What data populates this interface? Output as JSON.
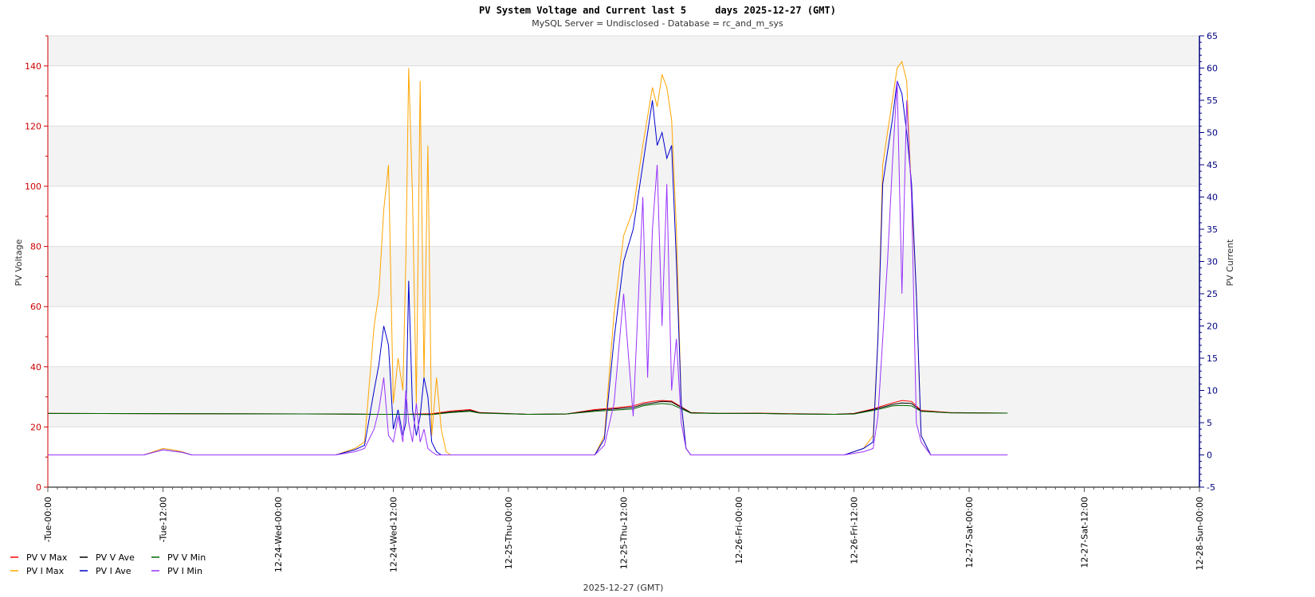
{
  "chart_data": {
    "type": "line",
    "title": "PV System Voltage and Current last 5     days 2025-12-27 (GMT)",
    "subtitle": "MySQL Server = Undisclosed - Database = rc_and_m_sys",
    "xlabel": "2025-12-27 (GMT)",
    "ylabel_left": "PV Voltage",
    "ylabel_right": "PV Current",
    "ylim_left": [
      0,
      150
    ],
    "ylim_right": [
      -5,
      65
    ],
    "left_ticks": [
      0,
      20,
      40,
      60,
      80,
      100,
      120,
      140
    ],
    "right_ticks": [
      -5,
      0,
      5,
      10,
      15,
      20,
      25,
      30,
      35,
      40,
      45,
      50,
      55,
      60,
      65
    ],
    "xlim": [
      0,
      120
    ],
    "x_ticks": [
      0,
      12,
      24,
      36,
      48,
      60,
      72,
      84,
      96,
      108,
      120
    ],
    "x_tick_labels": [
      "-Tue-00:00",
      "-Tue-12:00",
      "12-24-Wed-00:00",
      "12-24-Wed-12:00",
      "12-25-Thu-00:00",
      "12-25-Thu-12:00",
      "12-26-Fri-00:00",
      "12-26-Fri-12:00",
      "12-27-Sat-00:00",
      "12-27-Sat-12:00",
      "12-28-Sun-00:00"
    ],
    "grid": true,
    "legend_placement": "bottom-left",
    "legend": [
      "PV V Max",
      "PV V Ave",
      "PV V Min",
      "PV I Max",
      "PV I Ave",
      "PV I Min"
    ],
    "series": [
      {
        "name": "PV V Max",
        "axis": "left",
        "color": "#ff0000",
        "x": [
          0,
          30,
          34,
          37,
          40,
          42,
          44,
          45,
          50,
          54,
          57,
          59,
          61,
          62,
          63,
          64,
          65,
          67,
          70,
          74,
          78,
          82,
          84,
          86,
          87,
          88,
          89,
          90,
          91,
          94,
          100
        ],
        "y": [
          24.5,
          24.3,
          24.2,
          24.2,
          24.4,
          25.3,
          25.8,
          24.8,
          24.2,
          24.3,
          25.8,
          26.3,
          27.0,
          28.0,
          28.5,
          28.8,
          28.6,
          24.8,
          24.5,
          24.6,
          24.4,
          24.2,
          24.5,
          26.0,
          27.0,
          28.0,
          28.8,
          28.5,
          25.5,
          24.8,
          24.6
        ]
      },
      {
        "name": "PV V Ave",
        "axis": "left",
        "color": "#000000",
        "x": [
          0,
          30,
          34,
          37,
          40,
          42,
          44,
          45,
          50,
          54,
          57,
          59,
          61,
          62,
          63,
          64,
          65,
          67,
          70,
          74,
          78,
          82,
          84,
          86,
          87,
          88,
          89,
          90,
          91,
          94,
          100
        ],
        "y": [
          24.5,
          24.3,
          24.2,
          24.2,
          24.2,
          25.0,
          25.5,
          24.7,
          24.2,
          24.3,
          25.5,
          26.0,
          26.5,
          27.5,
          28.0,
          28.5,
          28.3,
          24.7,
          24.5,
          24.5,
          24.3,
          24.2,
          24.4,
          25.8,
          26.6,
          27.5,
          28.0,
          27.8,
          25.3,
          24.7,
          24.6
        ]
      },
      {
        "name": "PV V Min",
        "axis": "left",
        "color": "#006600",
        "x": [
          0,
          30,
          34,
          37,
          40,
          42,
          44,
          45,
          50,
          54,
          57,
          59,
          61,
          62,
          63,
          64,
          65,
          67,
          70,
          74,
          78,
          82,
          84,
          86,
          87,
          88,
          89,
          90,
          91,
          94,
          100
        ],
        "y": [
          24.5,
          24.3,
          24.2,
          24.2,
          24.1,
          24.8,
          25.2,
          24.6,
          24.2,
          24.3,
          25.2,
          25.6,
          26.0,
          27.0,
          27.5,
          27.8,
          27.5,
          24.6,
          24.5,
          24.5,
          24.3,
          24.2,
          24.3,
          25.5,
          26.2,
          27.0,
          27.2,
          27.0,
          25.2,
          24.7,
          24.6
        ]
      },
      {
        "name": "PV I Max",
        "axis": "right",
        "color": "#ffa500",
        "x": [
          0,
          10,
          11,
          12,
          13,
          14,
          15,
          30,
          32,
          33,
          34,
          34.5,
          35,
          35.5,
          36,
          36.5,
          37,
          37.3,
          37.6,
          38,
          38.4,
          38.8,
          39.2,
          39.6,
          40,
          40.5,
          41,
          41.5,
          42,
          42.5,
          43,
          44,
          57,
          58,
          59,
          60,
          61,
          62,
          63,
          63.5,
          64,
          64.5,
          65,
          65.5,
          66,
          66.5,
          67,
          68,
          83,
          85,
          86,
          86.5,
          87,
          87.5,
          88,
          88.5,
          89,
          89.5,
          90,
          90.5,
          91,
          92,
          100
        ],
        "y": [
          0,
          0,
          0.5,
          1,
          0.8,
          0.5,
          0,
          0,
          1,
          2,
          20,
          25,
          38,
          45,
          8,
          15,
          10,
          30,
          60,
          40,
          8,
          58,
          12,
          48,
          3,
          12,
          4,
          0.5,
          0,
          0,
          0,
          0,
          0,
          3,
          22,
          34,
          38,
          48,
          57,
          54,
          59,
          57,
          52,
          35,
          8,
          1,
          0,
          0,
          0,
          1,
          3,
          18,
          45,
          50,
          55,
          60,
          61,
          58,
          40,
          25,
          3,
          0,
          0
        ]
      },
      {
        "name": "PV I Ave",
        "axis": "right",
        "color": "#0000cc",
        "x": [
          0,
          10,
          11,
          12,
          13,
          14,
          15,
          30,
          32,
          33,
          34,
          34.5,
          35,
          35.5,
          36,
          36.5,
          37,
          37.3,
          37.6,
          38,
          38.4,
          38.8,
          39.2,
          39.6,
          40,
          40.5,
          41,
          41.5,
          42,
          42.5,
          43,
          44,
          57,
          58,
          59,
          60,
          61,
          62,
          63,
          63.5,
          64,
          64.5,
          65,
          65.5,
          66,
          66.5,
          67,
          68,
          83,
          85,
          86,
          86.5,
          87,
          87.5,
          88,
          88.5,
          89,
          89.5,
          90,
          90.5,
          91,
          92,
          100
        ],
        "y": [
          0,
          0,
          0.4,
          0.8,
          0.6,
          0.4,
          0,
          0,
          0.8,
          1.5,
          10,
          14,
          20,
          17,
          4,
          7,
          3,
          5,
          27,
          7,
          3,
          6,
          12,
          9,
          2,
          0.5,
          0,
          0,
          0,
          0,
          0,
          0,
          0,
          2.5,
          18,
          30,
          35,
          45,
          55,
          48,
          50,
          46,
          48,
          30,
          8,
          1,
          0,
          0,
          0,
          1,
          2,
          18,
          42,
          47,
          52,
          58,
          56,
          50,
          42,
          25,
          3,
          0,
          0
        ]
      },
      {
        "name": "PV I Min",
        "axis": "right",
        "color": "#9933ff",
        "x": [
          0,
          10,
          11,
          12,
          13,
          14,
          15,
          30,
          32,
          33,
          34,
          34.5,
          35,
          35.5,
          36,
          36.5,
          37,
          37.3,
          37.6,
          38,
          38.4,
          38.8,
          39.2,
          39.6,
          40,
          40.5,
          41,
          41.5,
          42,
          42.5,
          43,
          44,
          57,
          58,
          59,
          60,
          61,
          62,
          62.5,
          63,
          63.5,
          64,
          64.5,
          65,
          65.5,
          66,
          66.5,
          67,
          68,
          83,
          85,
          86,
          86.5,
          87,
          87.5,
          88,
          88.5,
          89,
          89.5,
          90,
          90.5,
          91,
          92,
          100
        ],
        "y": [
          0,
          0,
          0.4,
          0.8,
          0.6,
          0.4,
          0,
          0,
          0.5,
          1,
          4,
          7,
          12,
          3,
          2,
          6,
          2,
          10,
          5,
          2,
          8,
          2,
          4,
          1,
          0.5,
          0,
          0,
          0,
          0,
          0,
          0,
          0,
          0,
          1.5,
          8,
          25,
          6,
          40,
          12,
          35,
          45,
          20,
          42,
          10,
          18,
          5,
          1,
          0,
          0,
          0,
          0.5,
          1,
          6,
          18,
          30,
          45,
          58,
          25,
          55,
          40,
          5,
          2,
          0,
          0
        ]
      }
    ]
  }
}
